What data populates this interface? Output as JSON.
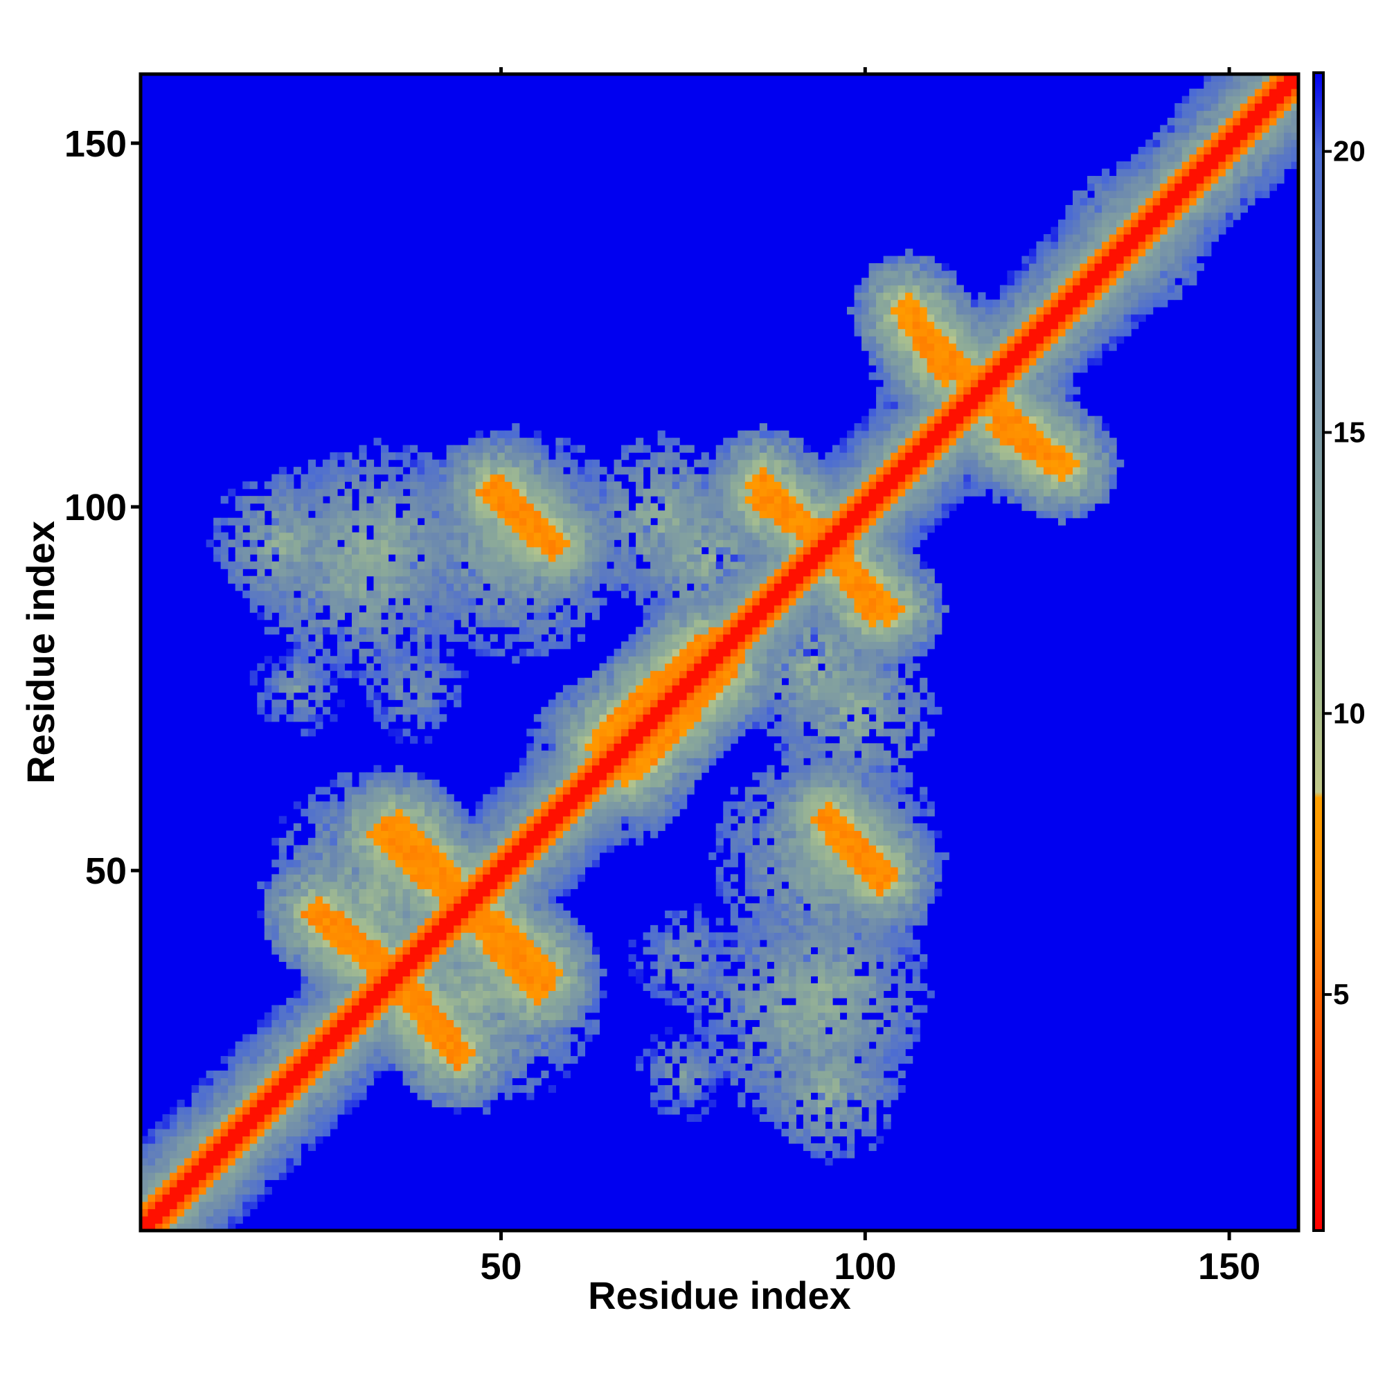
{
  "chart_data": {
    "type": "heatmap",
    "title": "",
    "xlabel": "Residue index",
    "ylabel": "Residue index",
    "xlim": [
      1,
      159
    ],
    "ylim": [
      1,
      159
    ],
    "x_ticks": [
      50,
      100,
      150
    ],
    "y_ticks": [
      50,
      100,
      150
    ],
    "colorbar": {
      "range": [
        0.8,
        21.4
      ],
      "ticks": [
        5,
        10,
        15,
        20
      ],
      "stops": [
        {
          "value": 0.8,
          "color": "#ff0000"
        },
        {
          "value": 3.0,
          "color": "#ff3300"
        },
        {
          "value": 6.5,
          "color": "#ff8c00"
        },
        {
          "value": 8.5,
          "color": "#ffa000"
        },
        {
          "value": 8.6,
          "color": "#c2c98a"
        },
        {
          "value": 10.5,
          "color": "#a5bd90"
        },
        {
          "value": 13.0,
          "color": "#8aa89a"
        },
        {
          "value": 17.0,
          "color": "#6b88b0"
        },
        {
          "value": 20.0,
          "color": "#4a6ad6"
        },
        {
          "value": 21.4,
          "color": "#0000f0"
        }
      ]
    },
    "background_color": "#0000f0",
    "description_of_values": "Pairwise distance map, symmetric about the diagonal; low values (red) along the main diagonal",
    "features": [
      {
        "kind": "diagonal",
        "value": 1.5,
        "width": 3
      },
      {
        "kind": "band",
        "from": [
          1,
          1
        ],
        "to": [
          159,
          159
        ],
        "value": 9,
        "width": 6
      },
      {
        "kind": "segment",
        "from": [
          25,
          44
        ],
        "to": [
          35,
          36
        ],
        "value": 6,
        "width": 2
      },
      {
        "kind": "segment",
        "from": [
          35,
          36
        ],
        "to": [
          43,
          26
        ],
        "value": 6,
        "width": 2
      },
      {
        "kind": "segment",
        "from": [
          34,
          55
        ],
        "to": [
          42,
          48
        ],
        "value": 6,
        "width": 2
      },
      {
        "kind": "segment",
        "from": [
          46,
          45
        ],
        "to": [
          56,
          36
        ],
        "value": 6,
        "width": 2
      },
      {
        "kind": "segment",
        "from": [
          50,
          102
        ],
        "to": [
          57,
          95
        ],
        "value": 6,
        "width": 2
      },
      {
        "kind": "segment",
        "from": [
          86,
          103
        ],
        "to": [
          92,
          97
        ],
        "value": 6,
        "width": 2
      },
      {
        "kind": "segment",
        "from": [
          96,
          94
        ],
        "to": [
          101,
          86
        ],
        "value": 6,
        "width": 2
      },
      {
        "kind": "segment",
        "from": [
          95,
          57
        ],
        "to": [
          102,
          49
        ],
        "value": 6,
        "width": 2
      },
      {
        "kind": "segment",
        "from": [
          107,
          125
        ],
        "to": [
          113,
          119
        ],
        "value": 6,
        "width": 2
      },
      {
        "kind": "segment",
        "from": [
          119,
          111
        ],
        "to": [
          127,
          106
        ],
        "value": 6,
        "width": 2
      },
      {
        "kind": "segment",
        "from": [
          67,
          66
        ],
        "to": [
          79,
          79
        ],
        "value": 6,
        "width": 4
      },
      {
        "kind": "blob",
        "center": [
          31,
          92
        ],
        "radius": 16,
        "value": 12
      },
      {
        "kind": "blob",
        "center": [
          53,
          96
        ],
        "radius": 13,
        "value": 12
      },
      {
        "kind": "blob",
        "center": [
          45,
          33
        ],
        "radius": 14,
        "value": 12
      },
      {
        "kind": "blob",
        "center": [
          33,
          48
        ],
        "radius": 16,
        "value": 12
      },
      {
        "kind": "blob",
        "center": [
          72,
          98
        ],
        "radius": 12,
        "value": 12
      },
      {
        "kind": "blob",
        "center": [
          95,
          52
        ],
        "radius": 16,
        "value": 12
      },
      {
        "kind": "blob",
        "center": [
          95,
          33
        ],
        "radius": 14,
        "value": 12
      },
      {
        "kind": "blob",
        "center": [
          95,
          20
        ],
        "radius": 10,
        "value": 12
      },
      {
        "kind": "blob",
        "center": [
          93,
          78
        ],
        "radius": 12,
        "value": 12
      },
      {
        "kind": "blob",
        "center": [
          65,
          65
        ],
        "radius": 12,
        "value": 12
      },
      {
        "kind": "blob",
        "center": [
          113,
          118
        ],
        "radius": 12,
        "value": 12
      },
      {
        "kind": "blob",
        "center": [
          137,
          137
        ],
        "radius": 10,
        "value": 12
      },
      {
        "kind": "blob",
        "center": [
          22,
          75
        ],
        "radius": 8,
        "value": 15
      },
      {
        "kind": "blob",
        "center": [
          75,
          38
        ],
        "radius": 9,
        "value": 15
      }
    ]
  }
}
